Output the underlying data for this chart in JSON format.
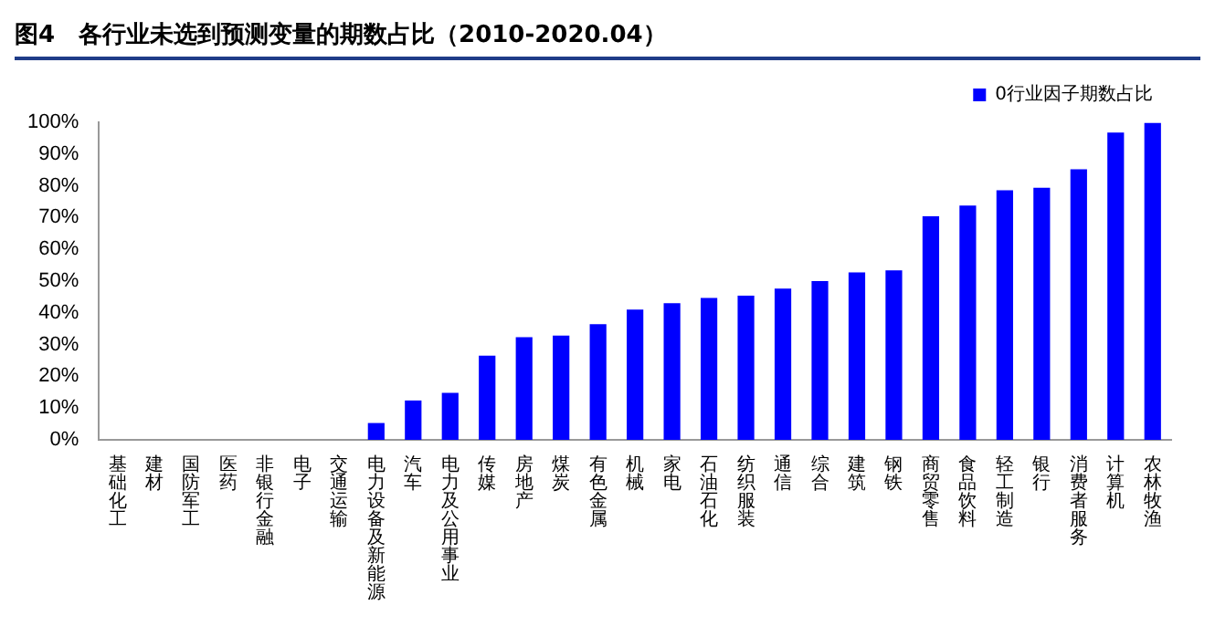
{
  "chart_data": {
    "type": "bar",
    "title": "图4　各行业未选到预测变量的期数占比（2010-2020.04）",
    "categories": [
      "基础化工",
      "建材",
      "国防军工",
      "医药",
      "非银行金融",
      "电子",
      "交通运输",
      "电力设备及新能源",
      "汽车",
      "电力及公用事业",
      "传媒",
      "房地产",
      "煤炭",
      "有色金属",
      "机械",
      "家电",
      "石油石化",
      "纺织服装",
      "通信",
      "综合",
      "建筑",
      "钢铁",
      "商贸零售",
      "食品饮料",
      "轻工制造",
      "银行",
      "消费者服务",
      "计算机",
      "农林牧渔"
    ],
    "series": [
      {
        "name": "0行业因子期数占比",
        "color": "#0000ff",
        "values": [
          0,
          0,
          0,
          0,
          0,
          0,
          0,
          5.3,
          12.4,
          14.8,
          26.5,
          32.3,
          32.8,
          36.4,
          41,
          43,
          44.7,
          45.4,
          47.6,
          50,
          52.7,
          53.4,
          70.4,
          73.8,
          78.6,
          79.4,
          85.2,
          96.8,
          99.8
        ]
      }
    ],
    "ylim": [
      0,
      100
    ],
    "yticks": [
      {
        "value": 0,
        "label": "0%"
      },
      {
        "value": 10,
        "label": "10%"
      },
      {
        "value": 20,
        "label": "20%"
      },
      {
        "value": 30,
        "label": "30%"
      },
      {
        "value": 40,
        "label": "40%"
      },
      {
        "value": 50,
        "label": "50%"
      },
      {
        "value": 60,
        "label": "60%"
      },
      {
        "value": 70,
        "label": "70%"
      },
      {
        "value": 80,
        "label": "80%"
      },
      {
        "value": 90,
        "label": "90%"
      },
      {
        "value": 100,
        "label": "100%"
      }
    ],
    "grid": false,
    "legend": "top right"
  }
}
